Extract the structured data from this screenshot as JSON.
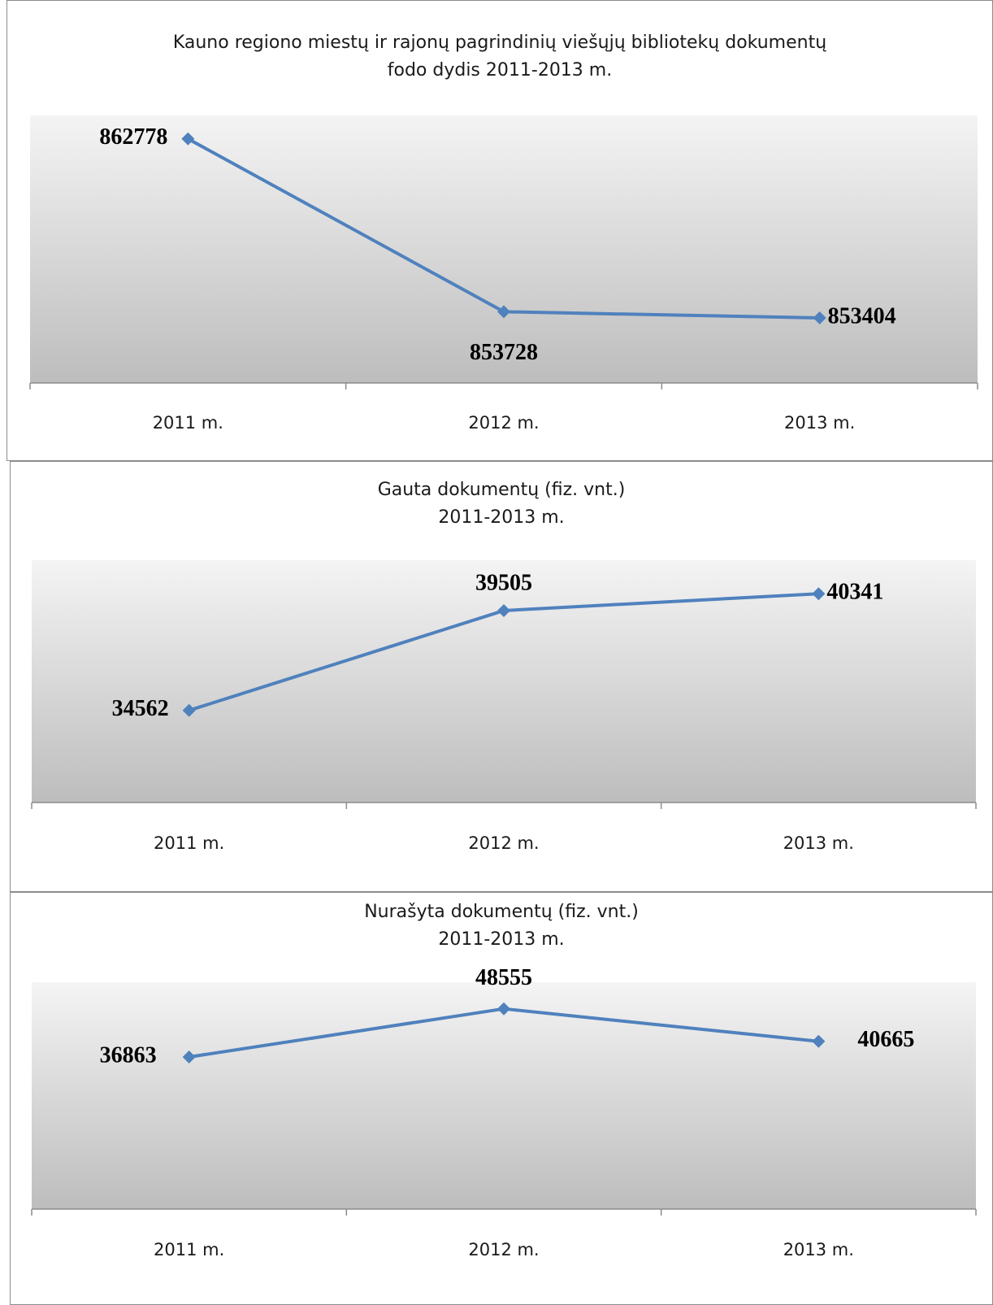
{
  "chart_data": [
    {
      "type": "line",
      "title_lines": [
        "Kauno regiono  miestų ir rajonų pagrindinių viešųjų bibliotekų dokumentų",
        "fodo dydis 2011-2013 m."
      ],
      "categories": [
        "2011 m.",
        "2012 m.",
        "2013 m."
      ],
      "values": [
        862778,
        853728,
        853404
      ],
      "data_labels": [
        "862778",
        "853728",
        "853404"
      ],
      "ylim": [
        850000,
        864000
      ],
      "grid": false,
      "legend": "none",
      "line_color": "#4f81bd"
    },
    {
      "type": "line",
      "title_lines": [
        "Gauta dokumentų (fiz. vnt.)",
        "2011-2013 m."
      ],
      "categories": [
        "2011 m.",
        "2012 m.",
        "2013 m."
      ],
      "values": [
        34562,
        39505,
        40341
      ],
      "data_labels": [
        "34562",
        "39505",
        "40341"
      ],
      "ylim": [
        30000,
        42000
      ],
      "grid": false,
      "legend": "none",
      "line_color": "#4f81bd"
    },
    {
      "type": "line",
      "title_lines": [
        "Nurašyta dokumentų (fiz. vnt.)",
        "2011-2013 m."
      ],
      "categories": [
        "2011 m.",
        "2012 m.",
        "2013 m."
      ],
      "values": [
        36863,
        48555,
        40665
      ],
      "data_labels": [
        "36863",
        "48555",
        "40665"
      ],
      "ylim": [
        0,
        55000
      ],
      "grid": false,
      "legend": "none",
      "line_color": "#4f81bd"
    }
  ]
}
